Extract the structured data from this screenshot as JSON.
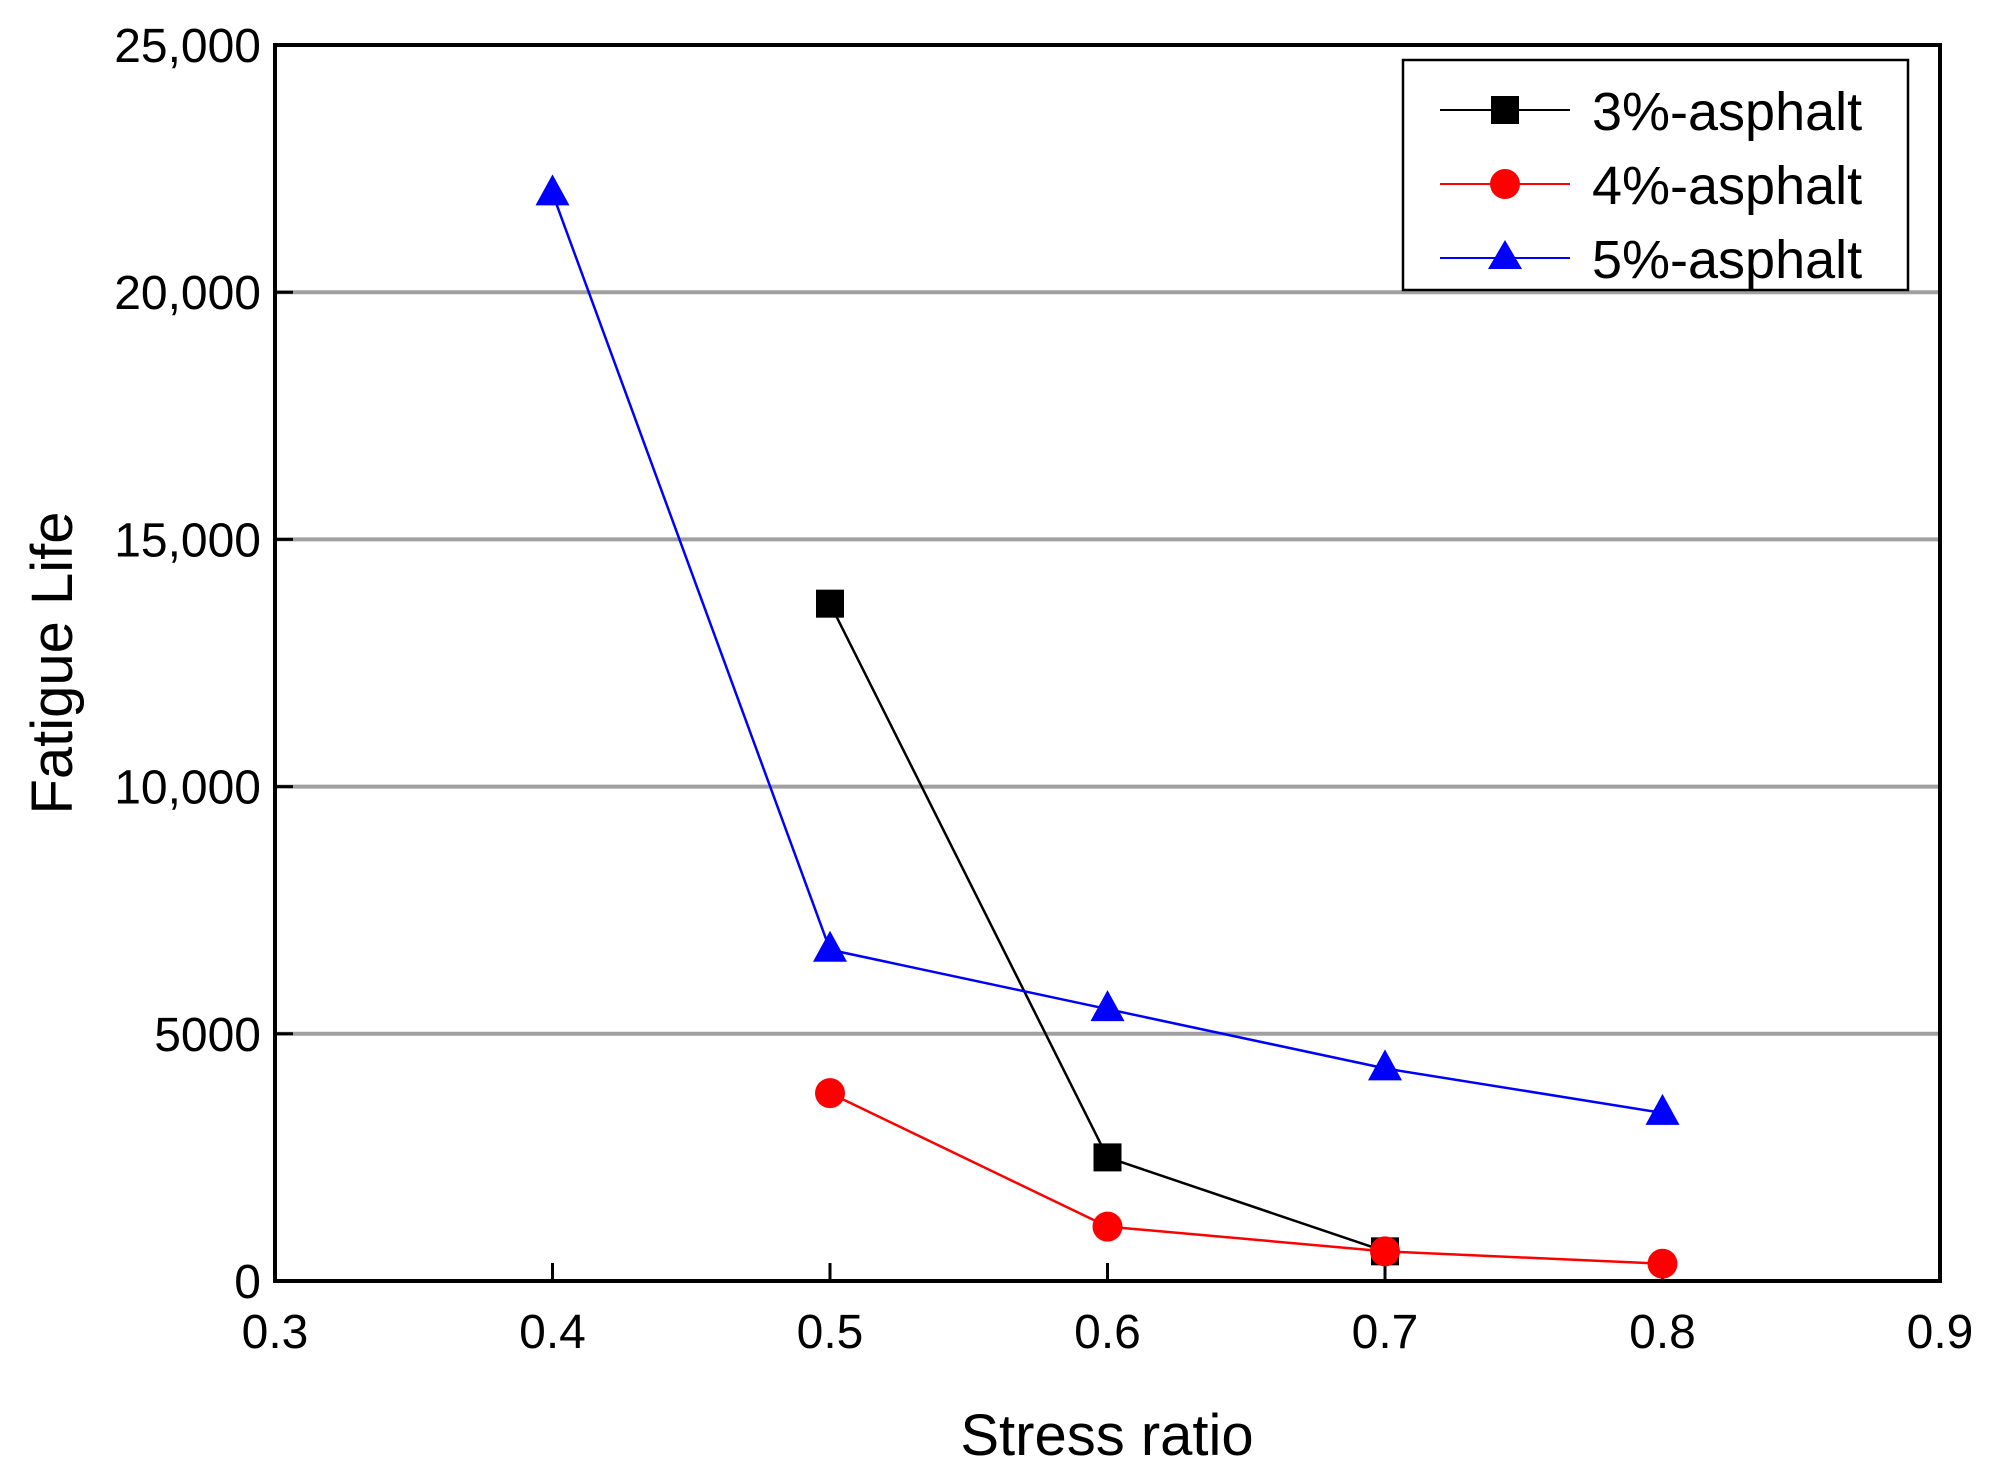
{
  "chart_data": {
    "type": "line",
    "title": "",
    "xlabel": "Stress ratio",
    "ylabel": "Fatigue Life",
    "xlim": [
      0.3,
      0.9
    ],
    "ylim": [
      0,
      25000
    ],
    "x_ticks": [
      0.3,
      0.4,
      0.5,
      0.6,
      0.7,
      0.8,
      0.9
    ],
    "x_tick_labels": [
      "0.3",
      "0.4",
      "0.5",
      "0.6",
      "0.7",
      "0.8",
      "0.9"
    ],
    "y_ticks": [
      0,
      5000,
      10000,
      15000,
      20000,
      25000
    ],
    "y_tick_labels": [
      "0",
      "5000",
      "10,000",
      "15,000",
      "20,000",
      "25,000"
    ],
    "grid": "horizontal",
    "legend_position": "top-right",
    "series": [
      {
        "name": "3%-asphalt",
        "color": "#000000",
        "marker": "square",
        "x": [
          0.5,
          0.6,
          0.7
        ],
        "values": [
          13700,
          2500,
          600
        ]
      },
      {
        "name": "4%-asphalt",
        "color": "#ff0000",
        "marker": "circle",
        "x": [
          0.5,
          0.6,
          0.7,
          0.8
        ],
        "values": [
          3800,
          1100,
          600,
          350
        ]
      },
      {
        "name": "5%-asphalt",
        "color": "#0000ff",
        "marker": "triangle",
        "x": [
          0.4,
          0.5,
          0.6,
          0.7,
          0.8
        ],
        "values": [
          22000,
          6700,
          5500,
          4300,
          3400
        ]
      }
    ]
  }
}
